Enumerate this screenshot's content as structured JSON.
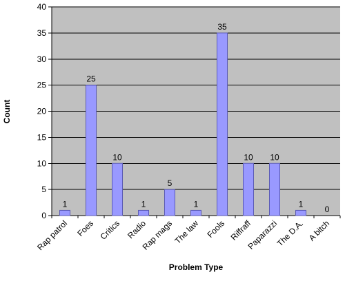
{
  "chart_data": {
    "type": "bar",
    "categories": [
      "Rap patrol",
      "Foes",
      "Critics",
      "Radio",
      "Rap mags",
      "The law",
      "Fools",
      "Riffraff",
      "Paparazzi",
      "The D.A.",
      "A bitch"
    ],
    "values": [
      1,
      25,
      10,
      1,
      5,
      1,
      35,
      10,
      10,
      1,
      0
    ],
    "xlabel": "Problem Type",
    "ylabel": "Count",
    "ylim": [
      0,
      40
    ],
    "yticks": [
      0,
      5,
      10,
      15,
      20,
      25,
      30,
      35,
      40
    ],
    "grid": true,
    "legend": "none",
    "data_labels": true,
    "colors": {
      "bar_fill": "#9999ff",
      "bar_stroke": "#5a5ab4",
      "plot_background": "#c0c0c0",
      "gridline": "#000000"
    }
  }
}
